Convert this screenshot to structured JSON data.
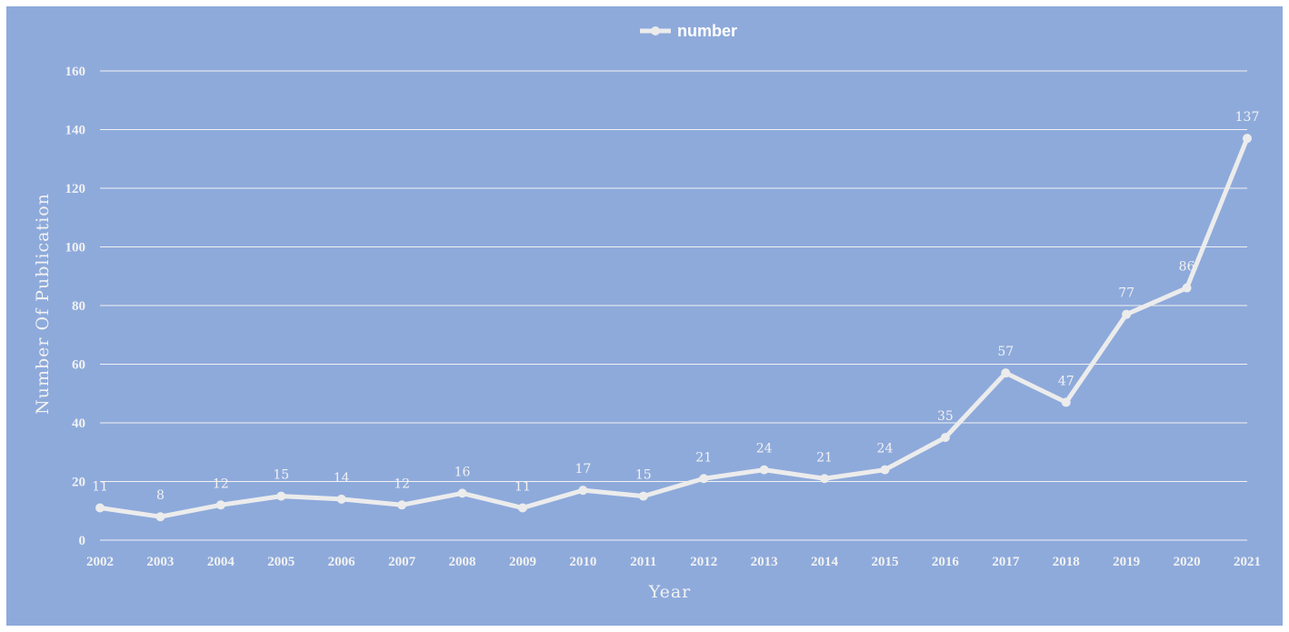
{
  "colors": {
    "plot_background": "#8eaadb",
    "line": "#ececec",
    "gridline": "#f2f2f2",
    "text": "#f2f2f2"
  },
  "chart_data": {
    "type": "line",
    "title": "",
    "xlabel": "Year",
    "ylabel": "Number Of Publication",
    "legend": {
      "position": "top-center",
      "entries": [
        "number"
      ]
    },
    "grid": true,
    "ylim": [
      0,
      160
    ],
    "yticks": [
      0,
      20,
      40,
      60,
      80,
      100,
      120,
      140,
      160
    ],
    "x": [
      "2002",
      "2003",
      "2004",
      "2005",
      "2006",
      "2007",
      "2008",
      "2009",
      "2010",
      "2011",
      "2012",
      "2013",
      "2014",
      "2015",
      "2016",
      "2017",
      "2018",
      "2019",
      "2020",
      "2021"
    ],
    "series": [
      {
        "name": "number",
        "values": [
          11,
          8,
          12,
          15,
          14,
          12,
          16,
          11,
          17,
          15,
          21,
          24,
          21,
          24,
          35,
          57,
          47,
          77,
          86,
          137
        ],
        "data_labels": [
          "11",
          "8",
          "12",
          "15",
          "14",
          "12",
          "16",
          "11",
          "17",
          "15",
          "21",
          "24",
          "21",
          "24",
          "35",
          "57",
          "47",
          "77",
          "86",
          "137"
        ]
      }
    ]
  }
}
